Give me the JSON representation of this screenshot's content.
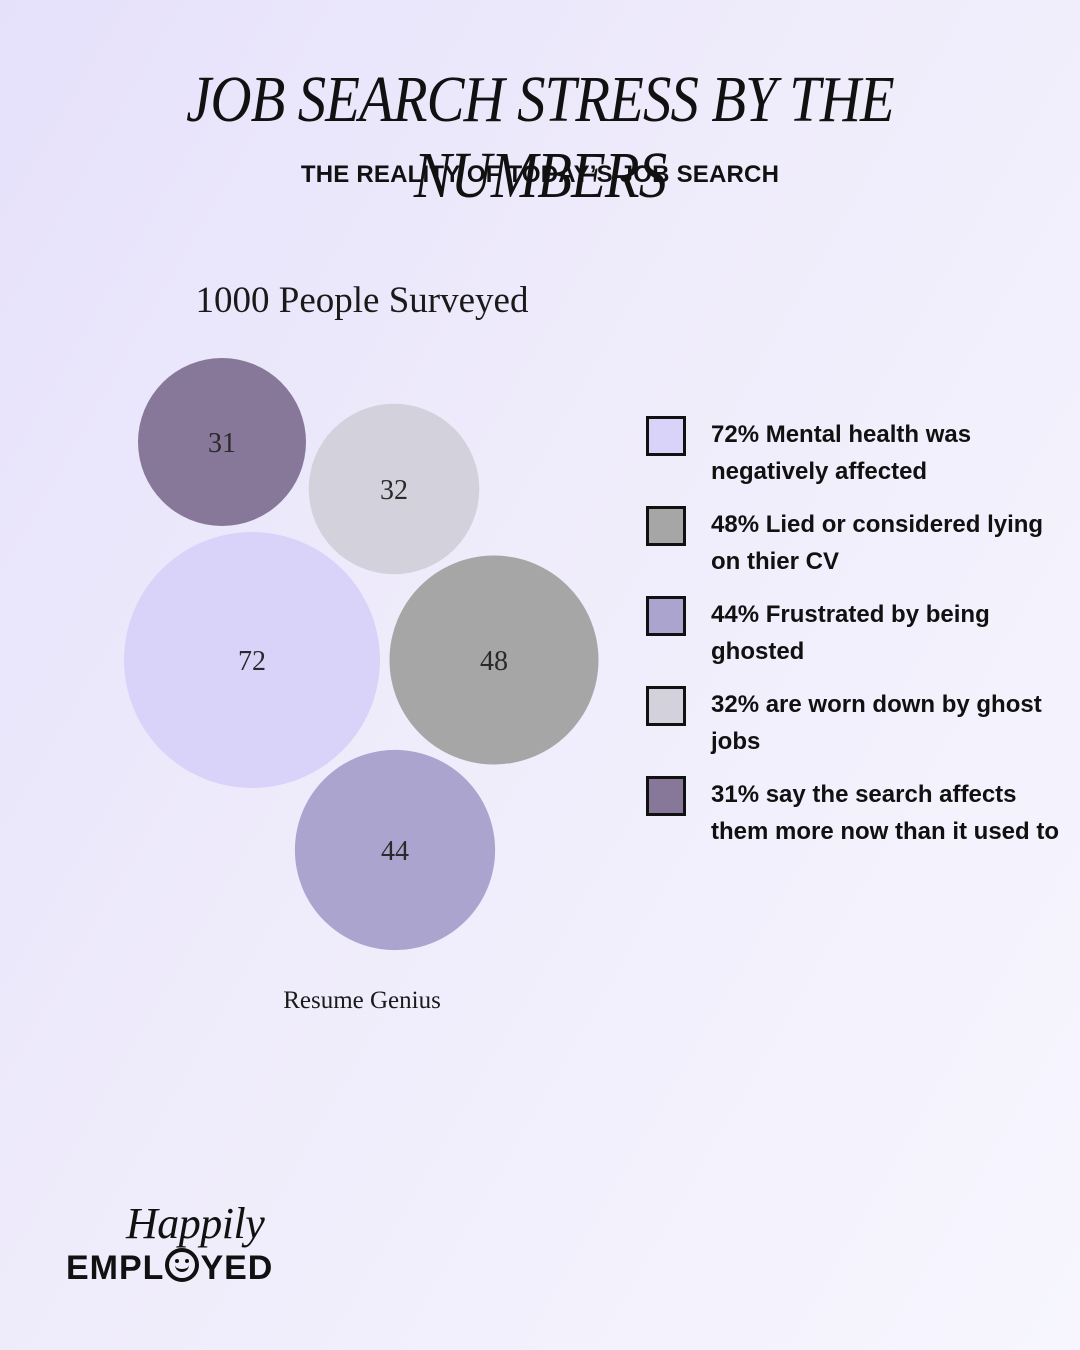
{
  "header": {
    "title": "JOB SEARCH STRESS BY THE NUMBERS",
    "subtitle": "THE REALITY OF TODAY’S JOB SEARCH"
  },
  "chart_data": {
    "type": "bubble",
    "title": "1000 People Surveyed",
    "source": "Resume Genius",
    "points": [
      {
        "value": 31,
        "label": "31",
        "color": "#877899"
      },
      {
        "value": 32,
        "label": "32",
        "color": "#d3d2dc"
      },
      {
        "value": 72,
        "label": "72",
        "color": "#d9d3fa"
      },
      {
        "value": 48,
        "label": "48",
        "color": "#a6a6a6"
      },
      {
        "value": 44,
        "label": "44",
        "color": "#aba4cf"
      }
    ],
    "legend": [
      {
        "text": "72% Mental health was negatively affected",
        "color": "#d9d3fa"
      },
      {
        "text": "48% Lied or considered lying on thier CV",
        "color": "#a6a6a6"
      },
      {
        "text": "44% Frustrated by being ghosted",
        "color": "#aba4cf"
      },
      {
        "text": "32% are worn down by ghost jobs",
        "color": "#d3d2dc"
      },
      {
        "text": "31% say the search affects them more now than it used to",
        "color": "#877899"
      }
    ]
  },
  "logo": {
    "line1": "Happily",
    "line2_left": "EMPL",
    "line2_right": "YED"
  }
}
